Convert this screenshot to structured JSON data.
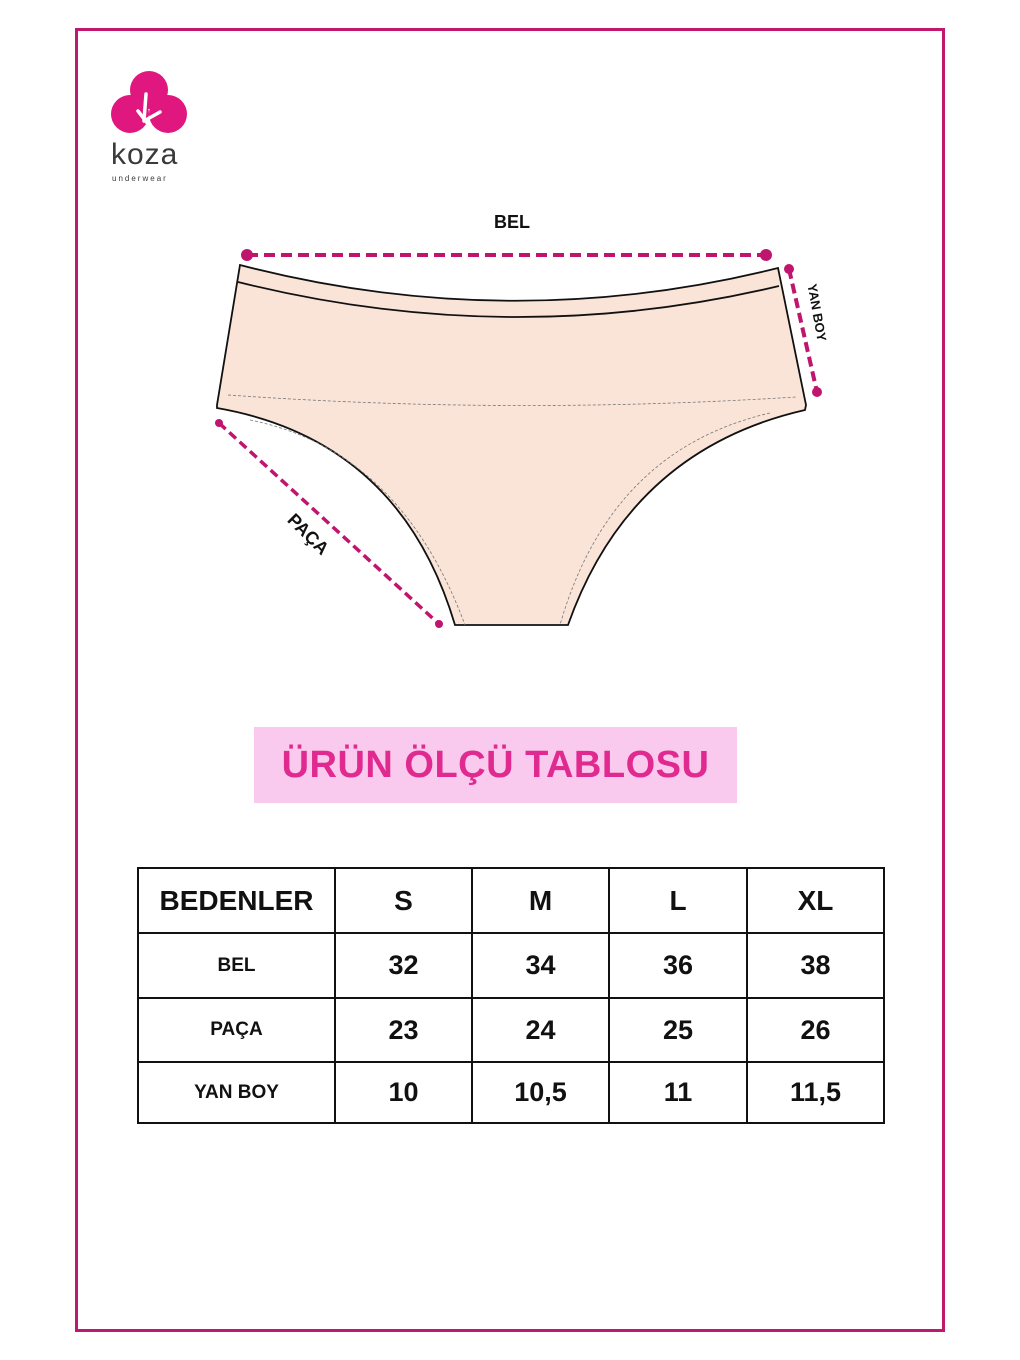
{
  "brand": {
    "name": "koza",
    "tagline": "underwear",
    "color": "#e0177f"
  },
  "diagram": {
    "labels": {
      "waist": "BEL",
      "side_height": "YAN BOY",
      "leg": "PAÇA"
    },
    "fabric_color": "#fae4d8",
    "measure_color": "#c0156f"
  },
  "title": "ÜRÜN ÖLÇÜ TABLOSU",
  "table": {
    "header": [
      "BEDENLER",
      "S",
      "M",
      "L",
      "XL"
    ],
    "rows": [
      {
        "label": "BEL",
        "values": [
          "32",
          "34",
          "36",
          "38"
        ]
      },
      {
        "label": "PAÇA",
        "values": [
          "23",
          "24",
          "25",
          "26"
        ]
      },
      {
        "label": "YAN BOY",
        "values": [
          "10",
          "10,5",
          "11",
          "11,5"
        ]
      }
    ]
  }
}
